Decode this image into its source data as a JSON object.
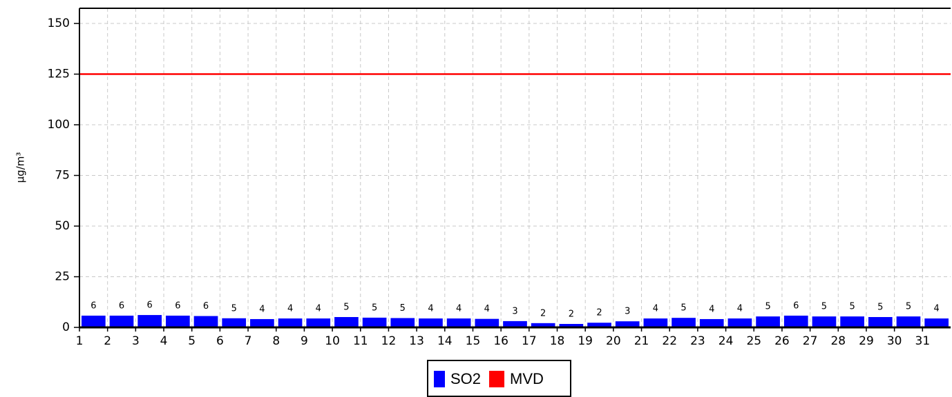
{
  "chart_data": {
    "type": "bar",
    "y_label": "µg/m³",
    "categories": [
      "1",
      "2",
      "3",
      "4",
      "5",
      "6",
      "7",
      "8",
      "9",
      "10",
      "11",
      "12",
      "13",
      "14",
      "15",
      "16",
      "17",
      "18",
      "19",
      "20",
      "21",
      "22",
      "23",
      "24",
      "25",
      "26",
      "27",
      "28",
      "29",
      "30",
      "31"
    ],
    "series": [
      {
        "name": "SO2",
        "color": "#0000ff",
        "values": [
          5.8,
          5.8,
          6.1,
          5.8,
          5.6,
          4.5,
          4.1,
          4.4,
          4.4,
          5.1,
          4.8,
          4.6,
          4.4,
          4.4,
          4.2,
          3.1,
          2.1,
          1.7,
          2.3,
          3.0,
          4.4,
          4.7,
          4.1,
          4.4,
          5.4,
          5.8,
          5.4,
          5.4,
          5.1,
          5.4,
          4.4
        ],
        "value_labels": [
          "6",
          "6",
          "6",
          "6",
          "6",
          "5",
          "4",
          "4",
          "4",
          "5",
          "5",
          "5",
          "4",
          "4",
          "4",
          "3",
          "2",
          "2",
          "2",
          "3",
          "4",
          "5",
          "4",
          "4",
          "5",
          "6",
          "5",
          "5",
          "5",
          "5",
          "4"
        ]
      }
    ],
    "reference_lines": [
      {
        "name": "MVD",
        "value": 125,
        "color": "#ff0000"
      }
    ],
    "ylim": [
      0,
      157.5
    ],
    "yticks": [
      0,
      25,
      50,
      75,
      100,
      125,
      150
    ],
    "grid": true
  }
}
